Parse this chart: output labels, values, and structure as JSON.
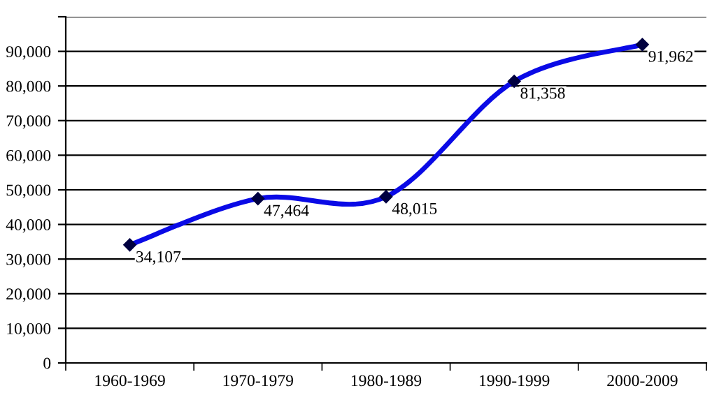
{
  "chart_data": {
    "type": "line",
    "categories": [
      "1960-1969",
      "1970-1979",
      "1980-1989",
      "1990-1999",
      "2000-2009"
    ],
    "series": [
      {
        "color": "#0a0ae6",
        "values": [
          34107,
          47464,
          48015,
          81358,
          91962
        ],
        "value_labels": [
          "34,107",
          "47,464",
          "48,015",
          "81,358",
          "91,962"
        ]
      }
    ],
    "ylim": [
      0,
      100000
    ],
    "yticks": [
      {
        "value": 0,
        "label": "0"
      },
      {
        "value": 10000,
        "label": "10,000"
      },
      {
        "value": 20000,
        "label": "20,000"
      },
      {
        "value": 30000,
        "label": "30,000"
      },
      {
        "value": 40000,
        "label": "40,000"
      },
      {
        "value": 50000,
        "label": "50,000"
      },
      {
        "value": 60000,
        "label": "60,000"
      },
      {
        "value": 70000,
        "label": "70,000"
      },
      {
        "value": 80000,
        "label": "80,000"
      },
      {
        "value": 90000,
        "label": "90,000"
      },
      {
        "value": 100000,
        "label": null
      }
    ],
    "grid": "y",
    "marker": "diamond",
    "line_style": "solid"
  }
}
